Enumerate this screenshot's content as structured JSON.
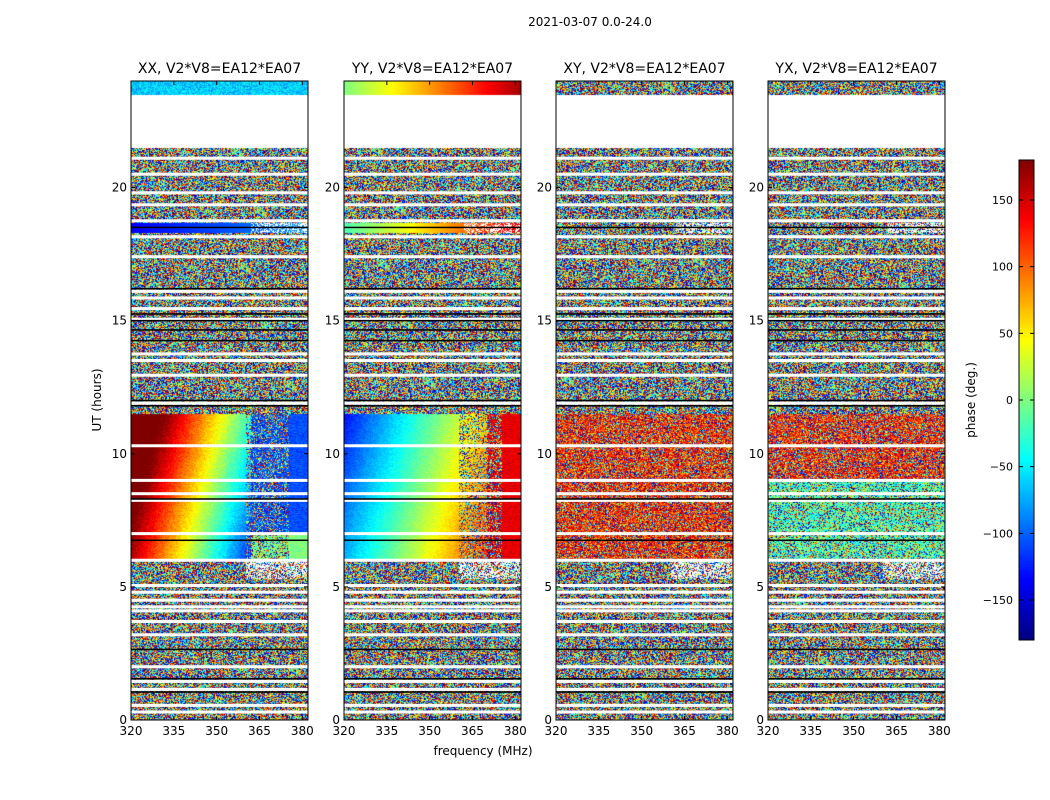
{
  "figure": {
    "suptitle": "2021-03-07 0.0-24.0",
    "ylabel": "UT (hours)",
    "xlabel": "frequency (MHz)",
    "colorbar_label": "phase (deg.)"
  },
  "chart_data": {
    "type": "heatmap",
    "panels": [
      {
        "title": "XX, V2*V8=EA12*EA07",
        "pattern": "xx"
      },
      {
        "title": "YY, V2*V8=EA12*EA07",
        "pattern": "yy"
      },
      {
        "title": "XY, V2*V8=EA12*EA07",
        "pattern": "xy"
      },
      {
        "title": "YX, V2*V8=EA12*EA07",
        "pattern": "yx"
      }
    ],
    "xlim": [
      320,
      382
    ],
    "ylim": [
      0,
      24
    ],
    "x_ticks": [
      "320",
      "335",
      "350",
      "365",
      "380"
    ],
    "x_tick_values": [
      320,
      335,
      350,
      365,
      380
    ],
    "y_ticks": [
      "0",
      "5",
      "10",
      "15",
      "20"
    ],
    "y_tick_values": [
      0,
      5,
      10,
      15,
      20
    ],
    "colorbar": {
      "vmin": -180,
      "vmax": 180,
      "ticks": [
        "−150",
        "−100",
        "−50",
        "0",
        "50",
        "100",
        "150"
      ],
      "tick_values": [
        -150,
        -100,
        -50,
        0,
        50,
        100,
        150
      ],
      "colormap": "jet"
    },
    "blank_ut_ranges": [
      [
        21.5,
        23.5
      ]
    ],
    "flagged_ut_hours": [
      0.3,
      0.55,
      1.15,
      1.45,
      2.0,
      3.2,
      3.7,
      4.1,
      4.25,
      4.5,
      4.8,
      5.05,
      6.0,
      7.0,
      8.25,
      8.5,
      9.0,
      10.3,
      11.9,
      12.95,
      13.5,
      13.75,
      15.05,
      15.45,
      15.85,
      16.1,
      17.4,
      18.15,
      18.75,
      19.35,
      19.8,
      20.5,
      21.1
    ],
    "dark_ut_hours": [
      1.05,
      1.55,
      2.65,
      6.75,
      8.3,
      11.8,
      12.0,
      14.25,
      14.65,
      15.0,
      15.25,
      16.2,
      18.5
    ]
  }
}
